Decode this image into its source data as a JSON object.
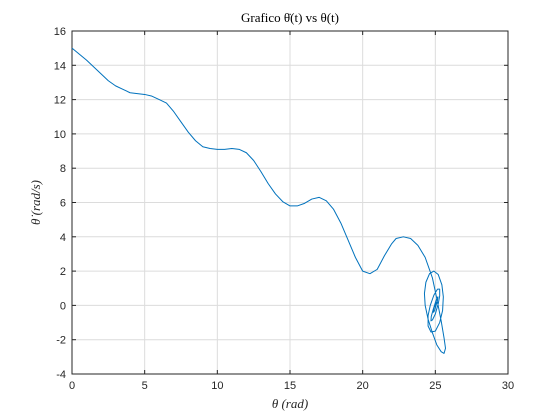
{
  "chart_data": {
    "type": "line",
    "title": "Grafico θ̇(t) vs θ(t)",
    "xlabel": "θ (rad)",
    "ylabel": "θ̇ (rad/s)",
    "xlim": [
      0,
      30
    ],
    "ylim": [
      -4,
      16
    ],
    "xticks": [
      0,
      5,
      10,
      15,
      20,
      25,
      30
    ],
    "yticks": [
      -4,
      -2,
      0,
      2,
      4,
      6,
      8,
      10,
      12,
      14,
      16
    ],
    "grid": true,
    "line_color": "#0072BD",
    "series": [
      {
        "x": [
          0,
          0.5,
          1,
          1.5,
          2,
          2.5,
          3,
          3.5,
          4,
          4.5,
          5,
          5.5,
          6,
          6.5,
          7,
          7.5,
          8,
          8.5,
          9,
          9.5,
          10,
          10.5,
          11,
          11.5,
          12,
          12.5,
          13,
          13.5,
          14,
          14.5,
          15,
          15.5,
          16,
          16.5,
          17,
          17.5,
          18,
          18.5,
          19,
          19.5,
          20,
          20.5,
          21,
          21.5,
          22,
          22.3,
          22.8,
          23.3,
          23.8,
          24.3,
          24.8,
          25.1,
          25.4,
          25.6,
          25.7,
          25.6,
          25.4,
          25.1,
          24.8,
          24.5,
          24.3,
          24.25,
          24.35,
          24.6,
          24.9,
          25.2,
          25.45,
          25.55,
          25.5,
          25.3,
          25.0,
          24.7,
          24.5,
          24.5,
          24.65,
          24.9,
          25.15,
          25.3,
          25.3,
          25.2,
          25.0,
          24.8,
          24.7,
          24.72,
          24.85,
          25.0,
          25.12,
          25.18,
          25.15,
          25.05,
          24.95,
          24.88,
          24.87,
          24.92,
          25.0,
          25.06,
          25.08,
          25.05,
          25.0,
          24.97,
          24.96,
          24.98,
          25.0
        ],
        "y": [
          15.0,
          14.65,
          14.3,
          13.9,
          13.5,
          13.1,
          12.8,
          12.6,
          12.4,
          12.35,
          12.3,
          12.2,
          12.0,
          11.8,
          11.3,
          10.7,
          10.1,
          9.6,
          9.25,
          9.15,
          9.1,
          9.1,
          9.15,
          9.1,
          8.9,
          8.45,
          7.8,
          7.1,
          6.5,
          6.05,
          5.8,
          5.8,
          5.95,
          6.2,
          6.3,
          6.1,
          5.6,
          4.8,
          3.8,
          2.8,
          2.0,
          1.85,
          2.1,
          2.9,
          3.6,
          3.9,
          4.0,
          3.9,
          3.5,
          2.8,
          1.6,
          0.4,
          -0.9,
          -1.9,
          -2.5,
          -2.8,
          -2.7,
          -2.3,
          -1.6,
          -0.8,
          0.0,
          0.7,
          1.35,
          1.85,
          2.0,
          1.8,
          1.2,
          0.5,
          -0.3,
          -1.0,
          -1.5,
          -1.55,
          -1.2,
          -0.6,
          0.0,
          0.6,
          0.95,
          0.95,
          0.55,
          0.1,
          -0.5,
          -0.85,
          -0.9,
          -0.65,
          -0.25,
          0.15,
          0.45,
          0.5,
          0.3,
          0.0,
          -0.3,
          -0.4,
          -0.3,
          -0.1,
          0.1,
          0.2,
          0.18,
          0.1,
          0.0,
          -0.08,
          -0.08,
          -0.03,
          0.0
        ]
      }
    ]
  }
}
